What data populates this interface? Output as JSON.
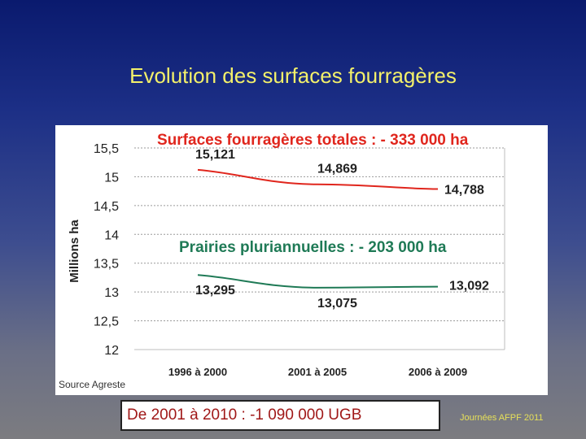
{
  "slide": {
    "title": "Evolution des surfaces fourragères",
    "footer_box": "De 2001 à 2010 : -1 090 000 UGB",
    "footer_note": "Journées AFPF 2011"
  },
  "chart_data": {
    "type": "line",
    "categories": [
      "1996 à 2000",
      "2001 à 2005",
      "2006 à 2009"
    ],
    "ylabel": "Millions ha",
    "ylim": [
      12,
      15.5
    ],
    "yticks": [
      "15,5",
      "15",
      "14,5",
      "14",
      "13,5",
      "13",
      "12,5",
      "12"
    ],
    "ytick_values": [
      15.5,
      15,
      14.5,
      14,
      13.5,
      13,
      12.5,
      12
    ],
    "grid": true,
    "source": "Source Agreste",
    "series": [
      {
        "name": "Surfaces fourragères totales : - 333 000 ha",
        "color": "#e0261d",
        "values": [
          15.121,
          14.869,
          14.788
        ],
        "labels": [
          "15,121",
          "14,869",
          "14,788"
        ]
      },
      {
        "name": "Prairies pluriannuelles : - 203 000 ha",
        "color": "#1f7a56",
        "values": [
          13.295,
          13.075,
          13.092
        ],
        "labels": [
          "13,295",
          "13,075",
          "13,092"
        ]
      }
    ]
  }
}
